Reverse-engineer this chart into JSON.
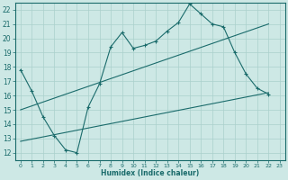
{
  "xlabel": "Humidex (Indice chaleur)",
  "bg_color": "#cde8e5",
  "line_color": "#1a6b6b",
  "grid_color": "#aad0cc",
  "xlim": [
    -0.5,
    23.5
  ],
  "ylim": [
    11.5,
    22.5
  ],
  "xticks": [
    0,
    1,
    2,
    3,
    4,
    5,
    6,
    7,
    8,
    9,
    10,
    11,
    12,
    13,
    14,
    15,
    16,
    17,
    18,
    19,
    20,
    21,
    22,
    23
  ],
  "yticks": [
    12,
    13,
    14,
    15,
    16,
    17,
    18,
    19,
    20,
    21,
    22
  ],
  "line1_x": [
    0,
    1,
    2,
    3,
    4,
    5,
    6,
    7,
    8,
    9,
    10,
    11,
    12,
    13,
    14,
    15,
    16,
    17,
    18,
    19,
    20,
    21,
    22
  ],
  "line1_y": [
    17.8,
    16.3,
    14.5,
    13.2,
    12.2,
    12.0,
    15.2,
    16.8,
    19.4,
    20.4,
    19.3,
    19.5,
    19.8,
    20.5,
    21.1,
    22.4,
    21.7,
    21.0,
    20.8,
    19.0,
    17.5,
    16.5,
    16.1
  ],
  "line2_x": [
    0,
    22
  ],
  "line2_y": [
    15.0,
    21.0
  ],
  "line3_x": [
    0,
    22
  ],
  "line3_y": [
    12.8,
    16.2
  ]
}
